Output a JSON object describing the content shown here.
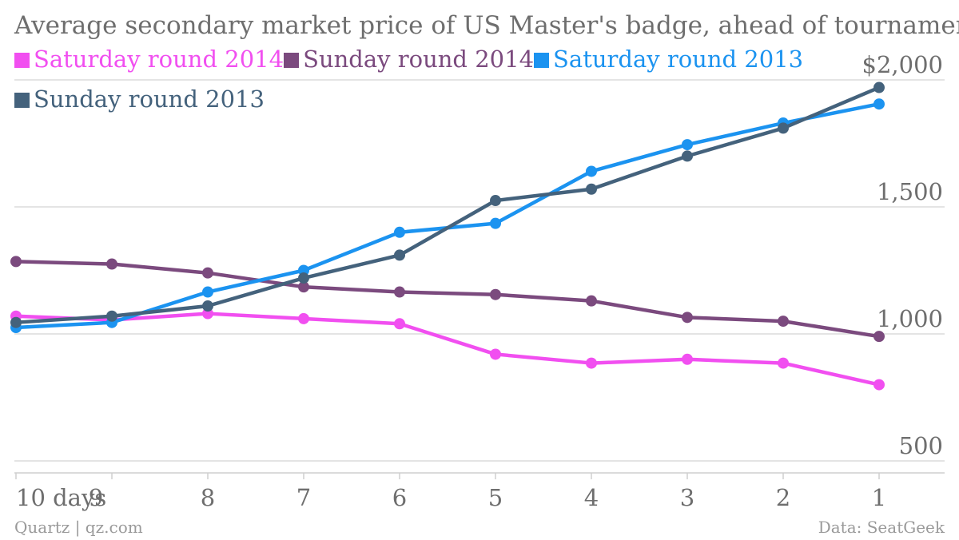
{
  "title": "Average secondary market price of US Master's badge, ahead of tournament",
  "source_left": "Quartz | qz.com",
  "source_right": "Data: SeatGeek",
  "colors": {
    "grid": "#dcdcdc",
    "tick_text": "#6e6e6e",
    "axis_line": "#cfcfcf"
  },
  "chart_data": {
    "type": "line",
    "title": "Average secondary market price of US Master's badge, ahead of tournament",
    "xlabel": "",
    "ylabel": "",
    "x_categories": [
      "10 days",
      "9",
      "8",
      "7",
      "6",
      "5",
      "4",
      "3",
      "2",
      "1"
    ],
    "y_ticks": [
      500,
      1000,
      1500,
      2000
    ],
    "y_tick_labels": [
      "500",
      "1,000",
      "1,500",
      "$2,000"
    ],
    "ylim": [
      500,
      2000
    ],
    "grid": true,
    "legend_position": "top-left",
    "series": [
      {
        "name": "Saturday round 2014",
        "color": "#f14ff0",
        "values": [
          1070,
          1055,
          1080,
          1060,
          1040,
          920,
          885,
          900,
          885,
          800
        ]
      },
      {
        "name": "Sunday round 2014",
        "color": "#7b4a7e",
        "values": [
          1285,
          1275,
          1240,
          1185,
          1165,
          1155,
          1130,
          1065,
          1050,
          990
        ]
      },
      {
        "name": "Saturday round 2013",
        "color": "#1b93f0",
        "values": [
          1025,
          1045,
          1165,
          1250,
          1400,
          1435,
          1640,
          1745,
          1830,
          1905
        ]
      },
      {
        "name": "Sunday round 2013",
        "color": "#44627c",
        "values": [
          1045,
          1070,
          1110,
          1220,
          1310,
          1525,
          1570,
          1700,
          1810,
          1970
        ]
      }
    ]
  }
}
